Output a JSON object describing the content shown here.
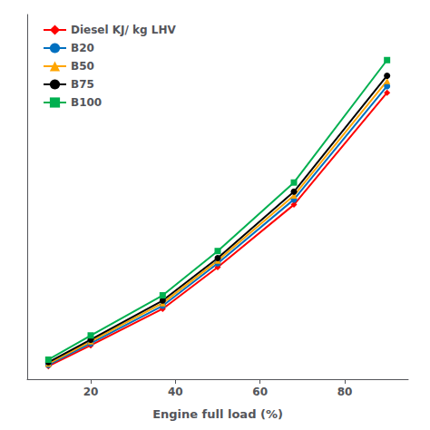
{
  "chart_data": {
    "type": "line",
    "xlabel": "Engine full load (%)",
    "x": [
      10,
      20,
      37,
      50,
      68,
      90
    ],
    "series": [
      {
        "name": "Diesel KJ/ kg LHV",
        "color": "#ff0000",
        "marker": "diamond",
        "values": [
          1.0,
          1.8,
          3.2,
          4.8,
          7.2,
          11.5
        ]
      },
      {
        "name": "B20",
        "color": "#0070c0",
        "marker": "circle",
        "values": [
          1.05,
          1.88,
          3.32,
          4.95,
          7.4,
          11.75
        ]
      },
      {
        "name": "B50",
        "color": "#ffa500",
        "marker": "triangle",
        "values": [
          1.1,
          1.95,
          3.42,
          5.05,
          7.55,
          11.95
        ]
      },
      {
        "name": "B75",
        "color": "#000000",
        "marker": "circle",
        "values": [
          1.15,
          2.02,
          3.52,
          5.15,
          7.7,
          12.15
        ]
      },
      {
        "name": "B100",
        "color": "#00b050",
        "marker": "square",
        "values": [
          1.25,
          2.18,
          3.72,
          5.42,
          8.05,
          12.75
        ]
      }
    ],
    "xlim": [
      5,
      95
    ],
    "ylim": [
      0.5,
      14.5
    ],
    "xticks": [
      20,
      40,
      60,
      80
    ],
    "tick_labels": "x",
    "grid": false,
    "legend": "upper left"
  }
}
